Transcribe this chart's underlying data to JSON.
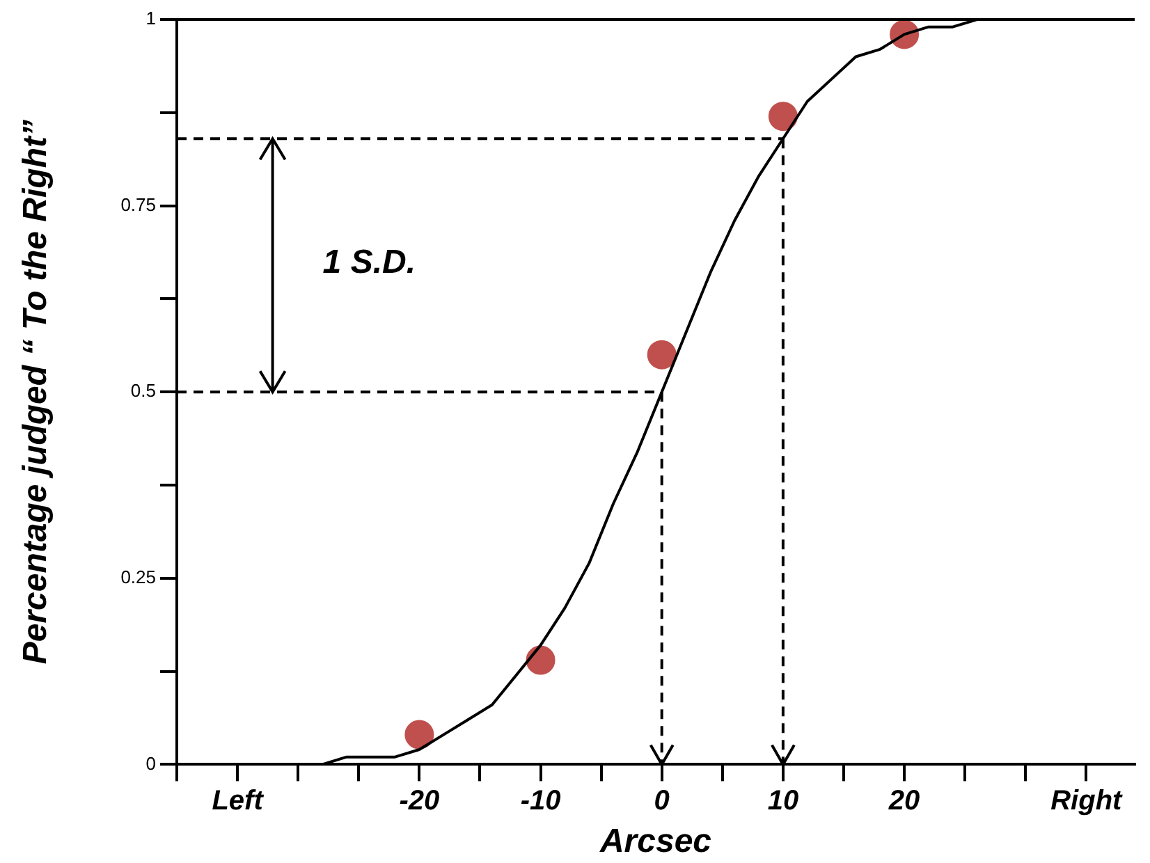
{
  "chart_data": {
    "type": "line",
    "xlabel": "Arcsec",
    "ylabel": "Percentage judged “ To the Right”",
    "xlim": [
      -40,
      39
    ],
    "ylim": [
      0,
      1
    ],
    "xticks": [
      {
        "value": -40,
        "label": null
      },
      {
        "value": -35,
        "label": "Left"
      },
      {
        "value": -30,
        "label": null
      },
      {
        "value": -25,
        "label": null
      },
      -20,
      {
        "value": -15,
        "label": null
      },
      -10,
      {
        "value": -5,
        "label": null
      },
      0,
      {
        "value": 5,
        "label": null
      },
      10,
      {
        "value": 15,
        "label": null
      },
      20,
      {
        "value": 25,
        "label": null
      },
      {
        "value": 30,
        "label": null
      },
      {
        "value": 35,
        "label": "Right"
      }
    ],
    "yticks": [
      0,
      {
        "value": 0.125,
        "label": null
      },
      0.25,
      {
        "value": 0.375,
        "label": null
      },
      0.5,
      {
        "value": 0.625,
        "label": null
      },
      0.75,
      {
        "value": 0.875,
        "label": null
      },
      1
    ],
    "grid": false,
    "legend": false,
    "annotations": [
      "1 S.D."
    ],
    "ref_lines": [
      {
        "axis": "y",
        "value": 0.84,
        "color": "#000000",
        "line_style": "dashed"
      },
      {
        "axis": "y",
        "value": 0.5,
        "color": "#000000",
        "line_style": "dashed"
      },
      {
        "axis": "x",
        "value": 0,
        "color": "#000000",
        "line_style": "dashed"
      },
      {
        "axis": "x",
        "value": 10,
        "color": "#000000",
        "line_style": "dashed"
      }
    ],
    "series": [
      {
        "type": "line",
        "color": "#000000",
        "marker": "none",
        "line_style": "solid",
        "x": [
          -30,
          -28,
          -26,
          -24,
          -22,
          -20,
          -18,
          -16,
          -14,
          -12,
          -10,
          -8,
          -6,
          -4,
          -2,
          0,
          2,
          4,
          6,
          8,
          10,
          12,
          14,
          16,
          18,
          20,
          22,
          24,
          26
        ],
        "values": [
          0.0,
          0.0,
          0.01,
          0.01,
          0.01,
          0.02,
          0.04,
          0.06,
          0.08,
          0.12,
          0.16,
          0.21,
          0.27,
          0.35,
          0.42,
          0.5,
          0.58,
          0.66,
          0.73,
          0.79,
          0.84,
          0.89,
          0.92,
          0.95,
          0.96,
          0.98,
          0.99,
          0.99,
          1.0
        ]
      },
      {
        "type": "scatter",
        "color": "#c0504d",
        "marker": "circle",
        "x": [
          -20,
          -10,
          0,
          10,
          20
        ],
        "values": [
          0.04,
          0.14,
          0.55,
          0.87,
          0.98
        ]
      }
    ]
  }
}
